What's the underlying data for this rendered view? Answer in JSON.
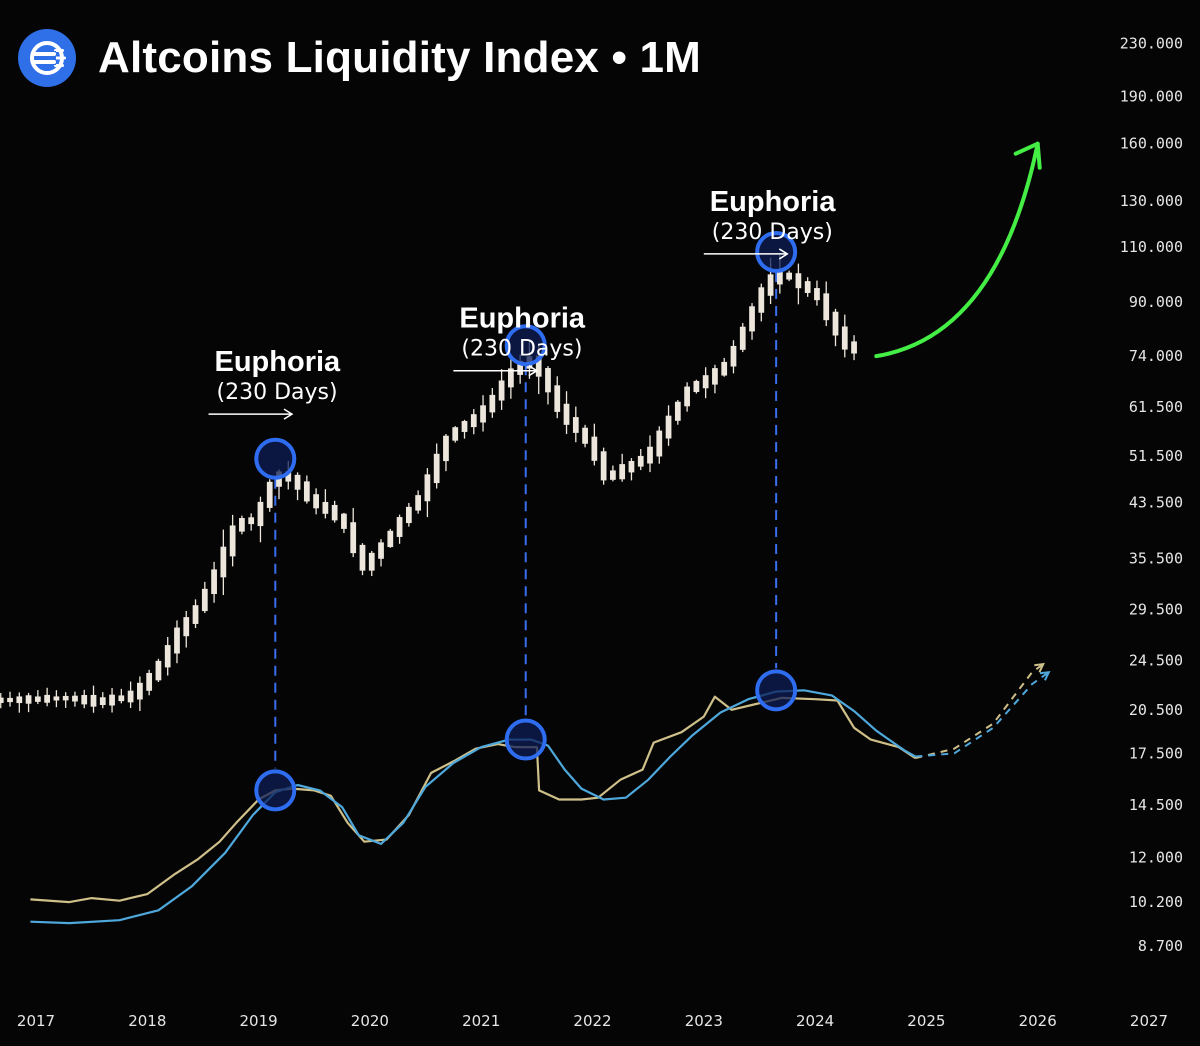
{
  "header": {
    "title": "Altcoins Liquidity Index • 1M",
    "logo_icon": "liquidity-lines-icon",
    "logo_color": "#2f6fe8"
  },
  "chart_data": {
    "type": "candlestick",
    "scale": "log",
    "grid": false,
    "x_range": [
      2017,
      2027
    ],
    "y_range": [
      7800,
      240000
    ],
    "x_ticks": [
      "2017",
      "2018",
      "2019",
      "2020",
      "2021",
      "2022",
      "2023",
      "2024",
      "2025",
      "2026",
      "2027"
    ],
    "y_ticks": [
      {
        "value": 230000,
        "label": "230.000"
      },
      {
        "value": 190000,
        "label": "190.000"
      },
      {
        "value": 160000,
        "label": "160.000"
      },
      {
        "value": 130000,
        "label": "130.000"
      },
      {
        "value": 110000,
        "label": "110.000"
      },
      {
        "value": 90000,
        "label": "90.000"
      },
      {
        "value": 74000,
        "label": "74.000"
      },
      {
        "value": 61500,
        "label": "61.500"
      },
      {
        "value": 51500,
        "label": "51.500"
      },
      {
        "value": 43500,
        "label": "43.500"
      },
      {
        "value": 35500,
        "label": "35.500"
      },
      {
        "value": 29500,
        "label": "29.500"
      },
      {
        "value": 24500,
        "label": "24.500"
      },
      {
        "value": 20500,
        "label": "20.500"
      },
      {
        "value": 17500,
        "label": "17.500"
      },
      {
        "value": 14500,
        "label": "14.500"
      },
      {
        "value": 12000,
        "label": "12.000"
      },
      {
        "value": 10200,
        "label": "10.200"
      },
      {
        "value": 8700,
        "label": "8.700"
      }
    ],
    "price_path": [
      [
        2016.6,
        21200
      ],
      [
        2017.0,
        21300
      ],
      [
        2017.3,
        21400
      ],
      [
        2017.6,
        21100
      ],
      [
        2017.9,
        21600
      ],
      [
        2018.1,
        23500
      ],
      [
        2018.3,
        27000
      ],
      [
        2018.5,
        30000
      ],
      [
        2018.7,
        35500
      ],
      [
        2018.85,
        41000
      ],
      [
        2019.0,
        40500
      ],
      [
        2019.15,
        47000
      ],
      [
        2019.25,
        48500
      ],
      [
        2019.4,
        46000
      ],
      [
        2019.55,
        43000
      ],
      [
        2019.7,
        42000
      ],
      [
        2019.85,
        39000
      ],
      [
        2019.95,
        34000
      ],
      [
        2020.1,
        36500
      ],
      [
        2020.3,
        40500
      ],
      [
        2020.5,
        45000
      ],
      [
        2020.65,
        51500
      ],
      [
        2020.75,
        56000
      ],
      [
        2020.9,
        58000
      ],
      [
        2021.05,
        60500
      ],
      [
        2021.2,
        66000
      ],
      [
        2021.35,
        71500
      ],
      [
        2021.5,
        73000
      ],
      [
        2021.6,
        68000
      ],
      [
        2021.75,
        60000
      ],
      [
        2021.9,
        56500
      ],
      [
        2022.05,
        52000
      ],
      [
        2022.15,
        47500
      ],
      [
        2022.35,
        49500
      ],
      [
        2022.55,
        52000
      ],
      [
        2022.75,
        60000
      ],
      [
        2022.9,
        66000
      ],
      [
        2023.1,
        68500
      ],
      [
        2023.25,
        72500
      ],
      [
        2023.45,
        86000
      ],
      [
        2023.6,
        97000
      ],
      [
        2023.75,
        100000
      ],
      [
        2023.9,
        96000
      ],
      [
        2024.05,
        92000
      ],
      [
        2024.2,
        82000
      ],
      [
        2024.35,
        75500
      ]
    ],
    "series": [
      {
        "name": "",
        "color": "#cfc08a",
        "type": "line",
        "values": [
          [
            2016.95,
            10300
          ],
          [
            2017.3,
            10200
          ],
          [
            2017.5,
            10350
          ],
          [
            2017.75,
            10250
          ],
          [
            2018.0,
            10500
          ],
          [
            2018.25,
            11300
          ],
          [
            2018.45,
            11900
          ],
          [
            2018.65,
            12700
          ],
          [
            2018.8,
            13600
          ],
          [
            2019.0,
            14800
          ],
          [
            2019.15,
            15300
          ],
          [
            2019.3,
            15400
          ],
          [
            2019.5,
            15300
          ],
          [
            2019.65,
            15000
          ],
          [
            2019.8,
            13600
          ],
          [
            2019.95,
            12700
          ],
          [
            2020.15,
            12800
          ],
          [
            2020.35,
            14000
          ],
          [
            2020.55,
            16300
          ],
          [
            2020.75,
            17000
          ],
          [
            2020.95,
            17800
          ],
          [
            2021.15,
            18100
          ],
          [
            2021.3,
            17900
          ],
          [
            2021.5,
            17900
          ],
          [
            2021.52,
            15300
          ],
          [
            2021.7,
            14800
          ],
          [
            2021.9,
            14800
          ],
          [
            2022.05,
            14900
          ],
          [
            2022.25,
            15900
          ],
          [
            2022.45,
            16500
          ],
          [
            2022.55,
            18200
          ],
          [
            2022.8,
            18900
          ],
          [
            2023.0,
            20000
          ],
          [
            2023.1,
            21500
          ],
          [
            2023.25,
            20500
          ],
          [
            2023.45,
            20900
          ],
          [
            2023.7,
            21400
          ],
          [
            2024.0,
            21300
          ],
          [
            2024.2,
            21200
          ],
          [
            2024.35,
            19200
          ],
          [
            2024.5,
            18400
          ],
          [
            2024.75,
            17900
          ],
          [
            2024.9,
            17200
          ]
        ],
        "projection": [
          [
            2024.9,
            17200
          ],
          [
            2025.25,
            17800
          ],
          [
            2025.6,
            19500
          ],
          [
            2025.95,
            23500
          ],
          [
            2026.05,
            24200
          ]
        ]
      },
      {
        "name": "",
        "color": "#4fa8dc",
        "type": "line",
        "values": [
          [
            2016.95,
            9500
          ],
          [
            2017.3,
            9450
          ],
          [
            2017.75,
            9550
          ],
          [
            2018.1,
            9900
          ],
          [
            2018.4,
            10800
          ],
          [
            2018.7,
            12200
          ],
          [
            2018.95,
            14000
          ],
          [
            2019.15,
            15200
          ],
          [
            2019.35,
            15600
          ],
          [
            2019.55,
            15300
          ],
          [
            2019.75,
            14400
          ],
          [
            2019.9,
            13000
          ],
          [
            2020.1,
            12600
          ],
          [
            2020.3,
            13600
          ],
          [
            2020.5,
            15500
          ],
          [
            2020.75,
            16900
          ],
          [
            2021.0,
            17900
          ],
          [
            2021.25,
            18400
          ],
          [
            2021.45,
            18400
          ],
          [
            2021.6,
            18000
          ],
          [
            2021.75,
            16500
          ],
          [
            2021.9,
            15400
          ],
          [
            2022.1,
            14800
          ],
          [
            2022.3,
            14900
          ],
          [
            2022.5,
            15900
          ],
          [
            2022.7,
            17300
          ],
          [
            2022.9,
            18700
          ],
          [
            2023.15,
            20300
          ],
          [
            2023.4,
            21300
          ],
          [
            2023.65,
            21900
          ],
          [
            2023.9,
            22000
          ],
          [
            2024.15,
            21600
          ],
          [
            2024.35,
            20400
          ],
          [
            2024.55,
            19000
          ],
          [
            2024.8,
            17700
          ],
          [
            2024.9,
            17300
          ]
        ],
        "projection": [
          [
            2024.9,
            17300
          ],
          [
            2025.25,
            17500
          ],
          [
            2025.6,
            19200
          ],
          [
            2025.95,
            22500
          ],
          [
            2026.1,
            23500
          ]
        ]
      }
    ],
    "annotations": [
      {
        "title": "Euphoria",
        "subtitle": "(230 Days)",
        "x": 2018.55,
        "x_end": 2019.3,
        "y": 61500
      },
      {
        "title": "Euphoria",
        "subtitle": "(230 Days)",
        "x": 2020.75,
        "x_end": 2021.5,
        "y": 72000
      },
      {
        "title": "Euphoria",
        "subtitle": "(230 Days)",
        "x": 2023.0,
        "x_end": 2023.75,
        "y": 110000
      }
    ],
    "peaks": [
      {
        "x": 2019.15,
        "price": 51000,
        "index": 15300
      },
      {
        "x": 2021.4,
        "price": 77000,
        "index": 18400
      },
      {
        "x": 2023.65,
        "price": 108000,
        "index": 22000
      }
    ],
    "forecast_arrow": {
      "color": "#44ee44",
      "from": [
        2024.55,
        74000
      ],
      "to": [
        2026.0,
        160000
      ]
    },
    "colors": {
      "candle_up": "#ece6dc",
      "candle_down": "#ece6dc",
      "peak_ring": "#2e6cf0",
      "peak_fill": "#0e1e55",
      "dash": "#3a6ef0"
    }
  }
}
